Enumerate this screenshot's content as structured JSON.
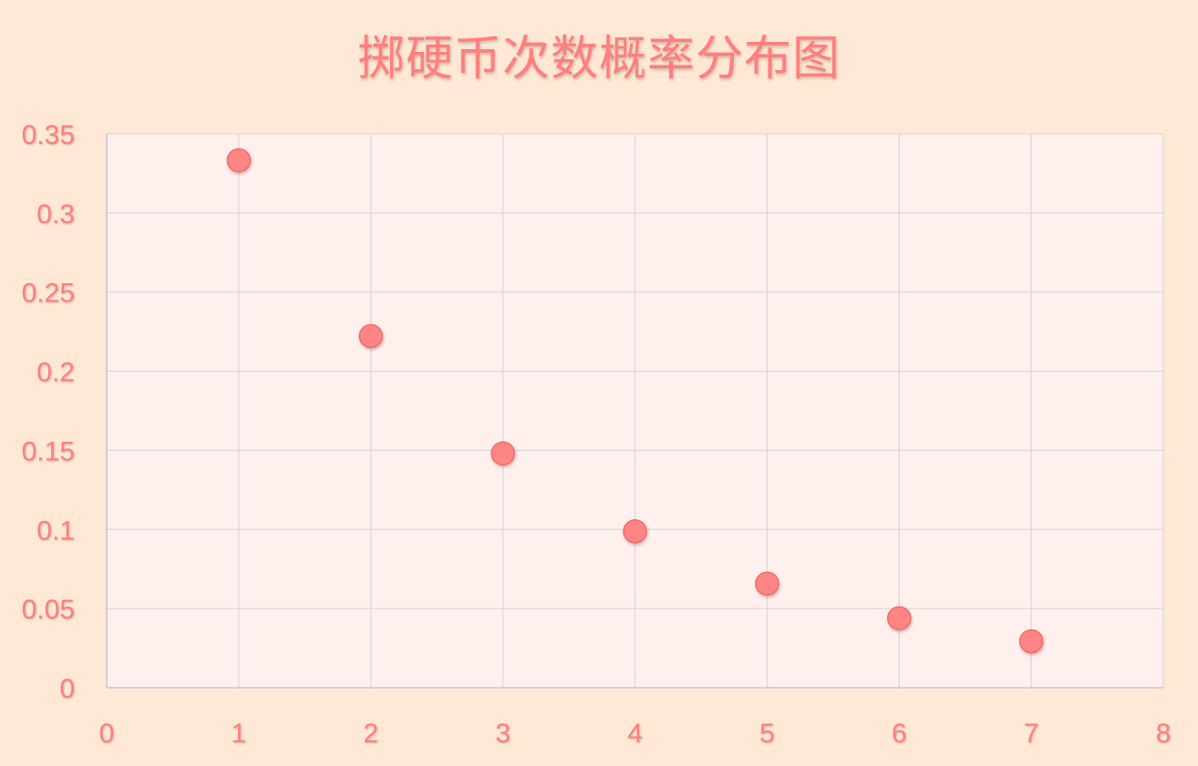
{
  "chart_data": {
    "type": "scatter",
    "title": "掷硬币次数概率分布图",
    "xlabel": "",
    "ylabel": "",
    "x": [
      1,
      2,
      3,
      4,
      5,
      6,
      7
    ],
    "series": [
      {
        "values": [
          0.3333,
          0.2222,
          0.1481,
          0.0988,
          0.0658,
          0.0439,
          0.0293
        ]
      }
    ],
    "xlim": [
      0,
      8
    ],
    "ylim": [
      0,
      0.35
    ],
    "x_ticks": [
      "0",
      "1",
      "2",
      "3",
      "4",
      "5",
      "6",
      "7",
      "8"
    ],
    "y_ticks": [
      "0",
      "0.05",
      "0.1",
      "0.15",
      "0.2",
      "0.25",
      "0.3",
      "0.35"
    ],
    "grid": true,
    "legend": "none"
  },
  "colors": {
    "background": "#FFE9D6",
    "plot_area": "#FFF0EE",
    "marker": "#FF8585",
    "text": "#FF7F7F",
    "grid": "#D9D9D9"
  }
}
